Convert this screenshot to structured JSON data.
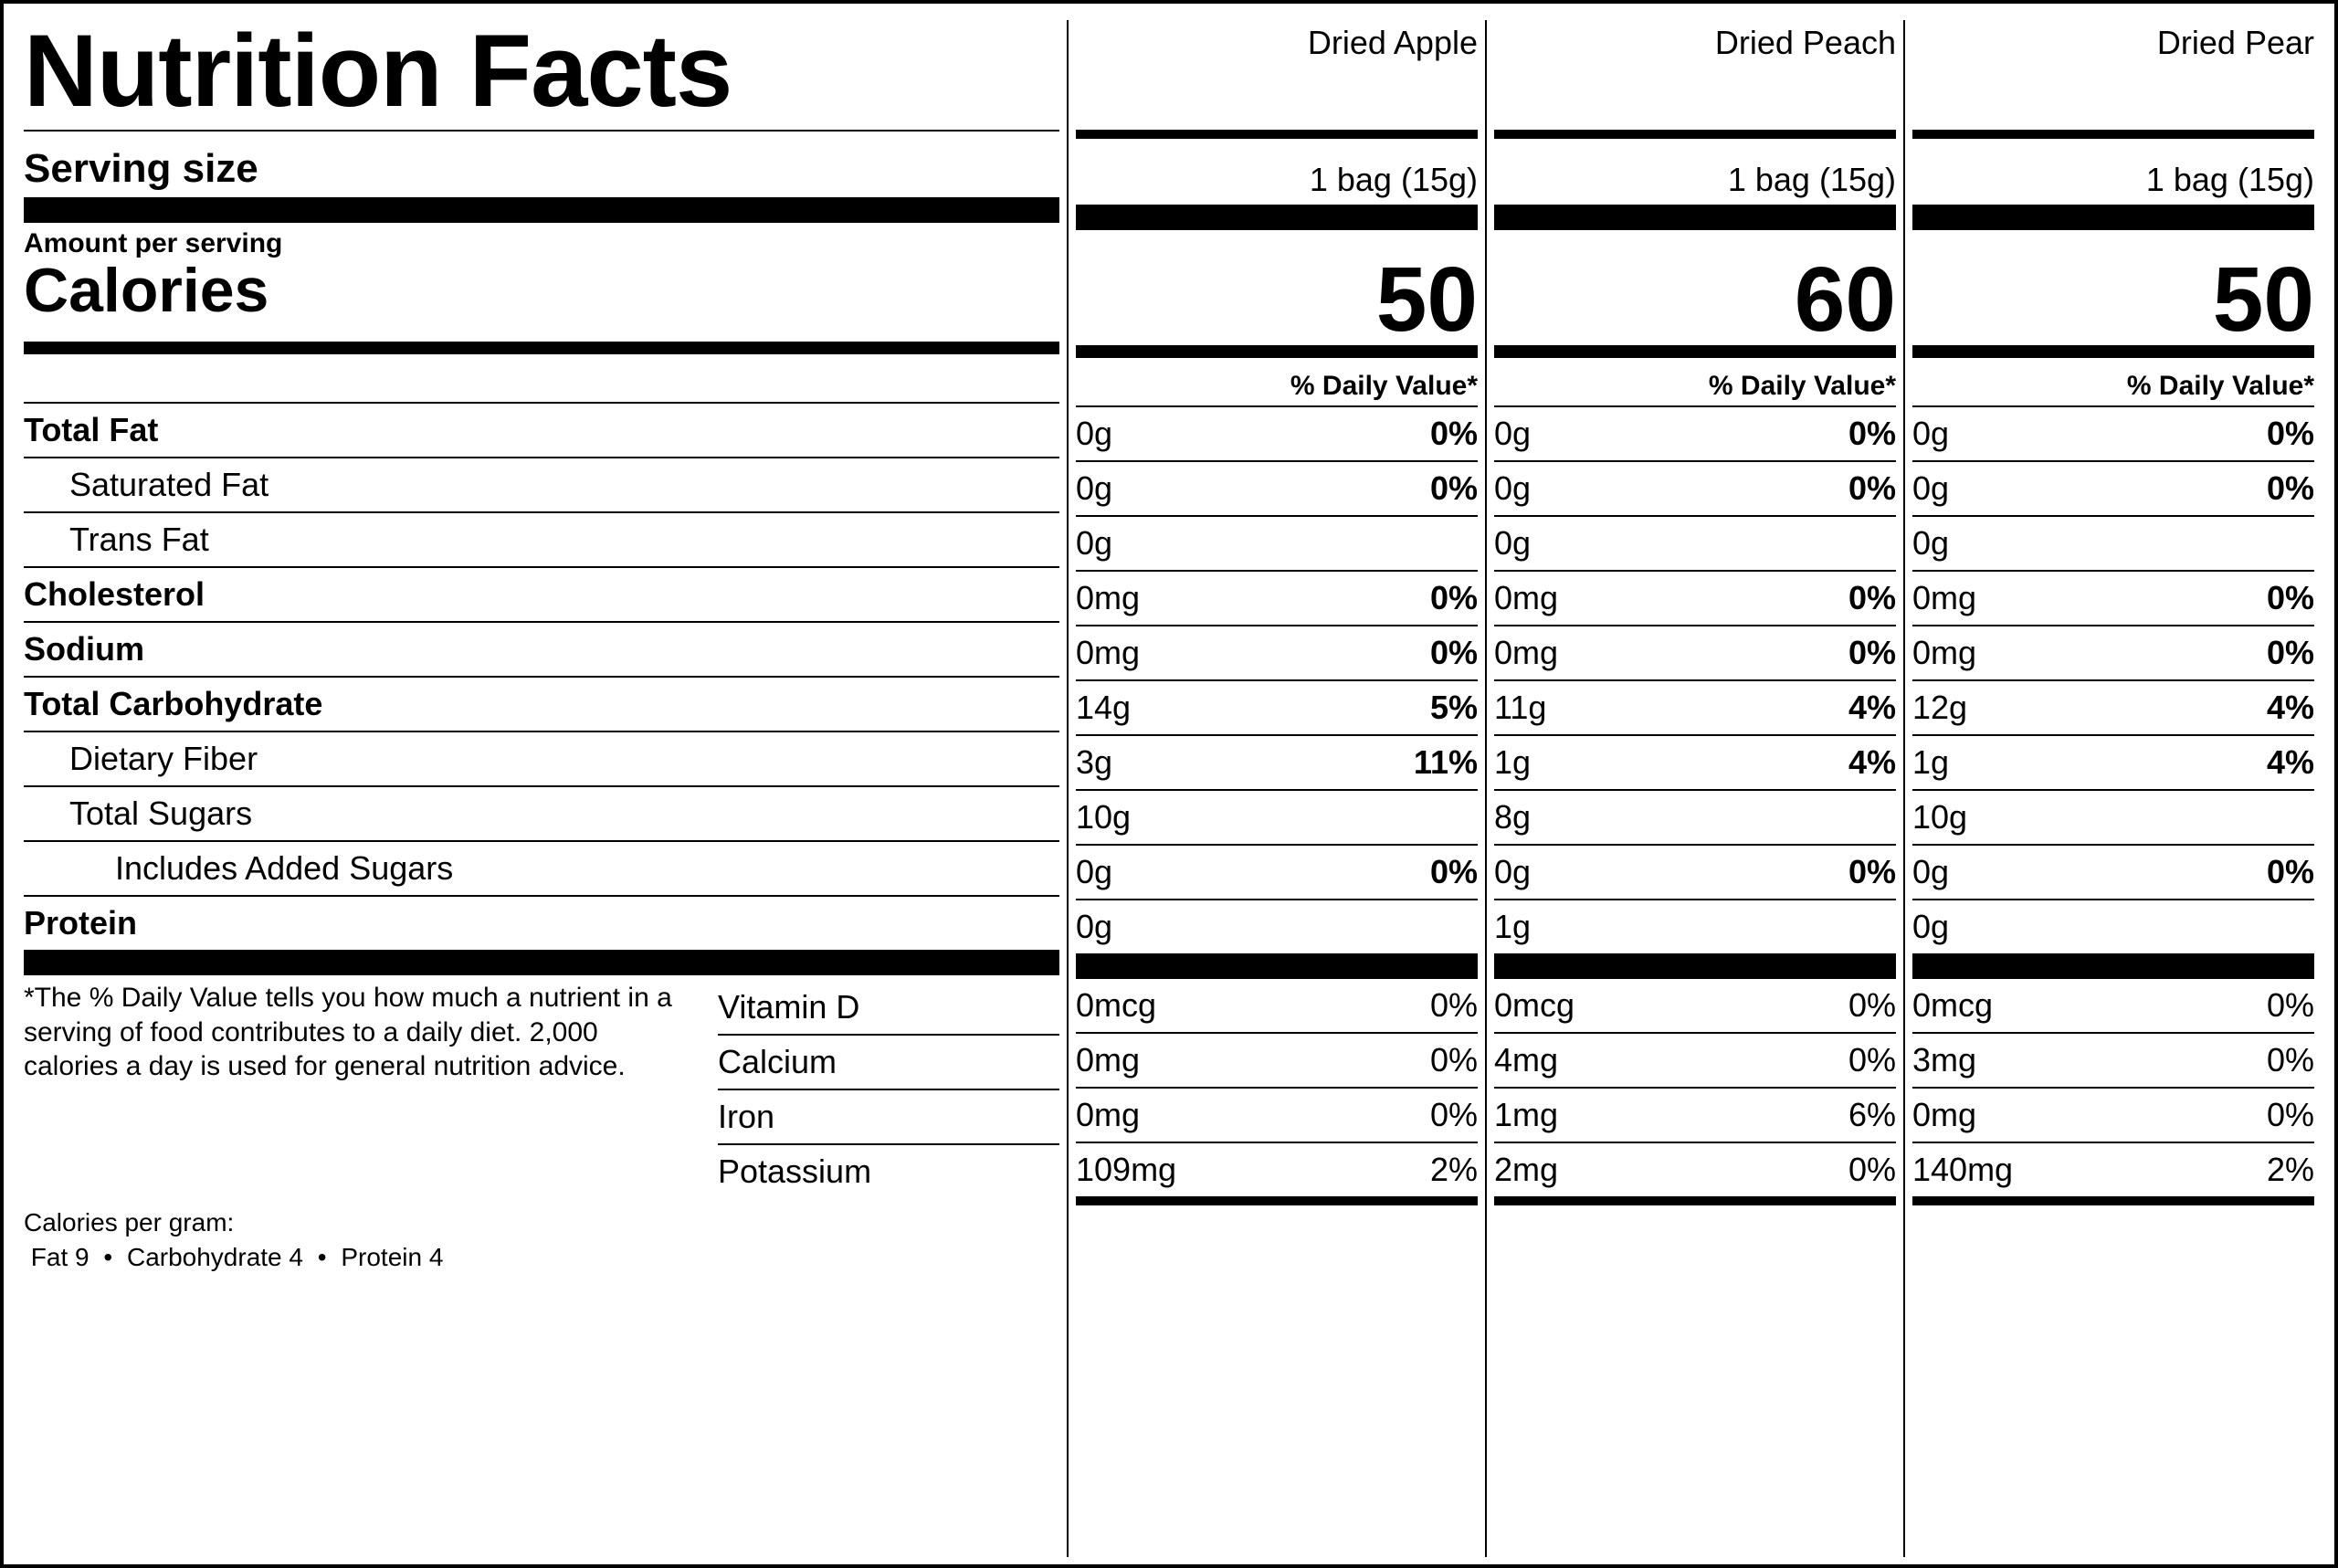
{
  "colors": {
    "fg": "#000000",
    "bg": "#ffffff"
  },
  "font": {
    "family": "Helvetica, Arial, sans-serif"
  },
  "title": "Nutrition Facts",
  "serving_size_label": "Serving size",
  "amount_per_serving_label": "Amount per serving",
  "calories_label": "Calories",
  "dv_header": "% Daily Value*",
  "nutrients": [
    {
      "key": "total_fat",
      "label": "Total Fat",
      "bold": true,
      "indent": 0
    },
    {
      "key": "sat_fat",
      "label": "Saturated Fat",
      "bold": false,
      "indent": 1
    },
    {
      "key": "trans_fat",
      "label": "Trans Fat",
      "bold": false,
      "indent": 1
    },
    {
      "key": "cholesterol",
      "label": "Cholesterol",
      "bold": true,
      "indent": 0
    },
    {
      "key": "sodium",
      "label": "Sodium",
      "bold": true,
      "indent": 0
    },
    {
      "key": "total_carb",
      "label": "Total Carbohydrate",
      "bold": true,
      "indent": 0
    },
    {
      "key": "fiber",
      "label": "Dietary Fiber",
      "bold": false,
      "indent": 1
    },
    {
      "key": "sugars",
      "label": "Total Sugars",
      "bold": false,
      "indent": 1
    },
    {
      "key": "added_sugars",
      "label": "Includes Added Sugars",
      "bold": false,
      "indent": 2
    },
    {
      "key": "protein",
      "label": "Protein",
      "bold": true,
      "indent": 0
    }
  ],
  "vitamins": [
    {
      "key": "vit_d",
      "label": "Vitamin D"
    },
    {
      "key": "calcium",
      "label": "Calcium"
    },
    {
      "key": "iron",
      "label": "Iron"
    },
    {
      "key": "potassium",
      "label": "Potassium"
    }
  ],
  "footnote": "*The % Daily Value tells you how much a nutrient in a serving of food contributes to a daily diet. 2,000 calories a day is used for general nutrition advice.",
  "cpg": {
    "label": "Calories per gram:",
    "fat": "Fat 9",
    "carb": "Carbohydrate 4",
    "protein": "Protein 4",
    "sep": "•"
  },
  "products": [
    {
      "name": "Dried Apple",
      "serving": "1 bag (15g)",
      "calories": "50",
      "values": {
        "total_fat": {
          "amt": "0g",
          "dv": "0%"
        },
        "sat_fat": {
          "amt": "0g",
          "dv": "0%"
        },
        "trans_fat": {
          "amt": "0g",
          "dv": ""
        },
        "cholesterol": {
          "amt": "0mg",
          "dv": "0%"
        },
        "sodium": {
          "amt": "0mg",
          "dv": "0%"
        },
        "total_carb": {
          "amt": "14g",
          "dv": "5%"
        },
        "fiber": {
          "amt": "3g",
          "dv": "11%"
        },
        "sugars": {
          "amt": "10g",
          "dv": ""
        },
        "added_sugars": {
          "amt": "0g",
          "dv": "0%"
        },
        "protein": {
          "amt": "0g",
          "dv": ""
        }
      },
      "vitamins": {
        "vit_d": {
          "amt": "0mcg",
          "dv": "0%"
        },
        "calcium": {
          "amt": "0mg",
          "dv": "0%"
        },
        "iron": {
          "amt": "0mg",
          "dv": "0%"
        },
        "potassium": {
          "amt": "109mg",
          "dv": "2%"
        }
      }
    },
    {
      "name": "Dried Peach",
      "serving": "1 bag (15g)",
      "calories": "60",
      "values": {
        "total_fat": {
          "amt": "0g",
          "dv": "0%"
        },
        "sat_fat": {
          "amt": "0g",
          "dv": "0%"
        },
        "trans_fat": {
          "amt": "0g",
          "dv": ""
        },
        "cholesterol": {
          "amt": "0mg",
          "dv": "0%"
        },
        "sodium": {
          "amt": "0mg",
          "dv": "0%"
        },
        "total_carb": {
          "amt": "11g",
          "dv": "4%"
        },
        "fiber": {
          "amt": "1g",
          "dv": "4%"
        },
        "sugars": {
          "amt": "8g",
          "dv": ""
        },
        "added_sugars": {
          "amt": "0g",
          "dv": "0%"
        },
        "protein": {
          "amt": "1g",
          "dv": ""
        }
      },
      "vitamins": {
        "vit_d": {
          "amt": "0mcg",
          "dv": "0%"
        },
        "calcium": {
          "amt": "4mg",
          "dv": "0%"
        },
        "iron": {
          "amt": "1mg",
          "dv": "6%"
        },
        "potassium": {
          "amt": "2mg",
          "dv": "0%"
        }
      }
    },
    {
      "name": "Dried Pear",
      "serving": "1 bag (15g)",
      "calories": "50",
      "values": {
        "total_fat": {
          "amt": "0g",
          "dv": "0%"
        },
        "sat_fat": {
          "amt": "0g",
          "dv": "0%"
        },
        "trans_fat": {
          "amt": "0g",
          "dv": ""
        },
        "cholesterol": {
          "amt": "0mg",
          "dv": "0%"
        },
        "sodium": {
          "amt": "0mg",
          "dv": "0%"
        },
        "total_carb": {
          "amt": "12g",
          "dv": "4%"
        },
        "fiber": {
          "amt": "1g",
          "dv": "4%"
        },
        "sugars": {
          "amt": "10g",
          "dv": ""
        },
        "added_sugars": {
          "amt": "0g",
          "dv": "0%"
        },
        "protein": {
          "amt": "0g",
          "dv": ""
        }
      },
      "vitamins": {
        "vit_d": {
          "amt": "0mcg",
          "dv": "0%"
        },
        "calcium": {
          "amt": "3mg",
          "dv": "0%"
        },
        "iron": {
          "amt": "0mg",
          "dv": "0%"
        },
        "potassium": {
          "amt": "140mg",
          "dv": "2%"
        }
      }
    }
  ]
}
